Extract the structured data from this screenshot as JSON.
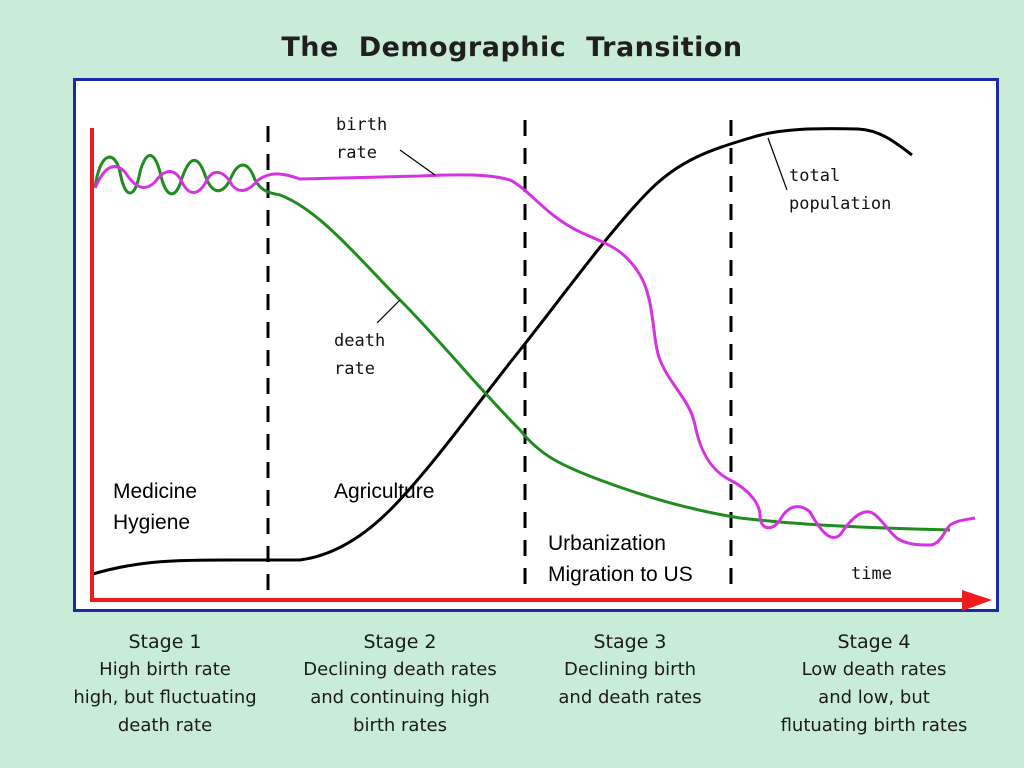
{
  "title": "The Demographic Transition",
  "curve_labels": {
    "birth_rate": [
      "birth",
      "rate"
    ],
    "death_rate": [
      "death",
      "rate"
    ],
    "total_population": [
      "total",
      "population"
    ],
    "time": "time"
  },
  "annotations": {
    "stage1": [
      "Medicine",
      "Hygiene"
    ],
    "stage2": "Agriculture",
    "stage3": [
      "Urbanization",
      "Migration to US"
    ]
  },
  "stages": [
    {
      "title": "Stage 1",
      "lines": [
        "High birth rate",
        "high, but fluctuating",
        "death rate"
      ]
    },
    {
      "title": "Stage 2",
      "lines": [
        "Declining death rates",
        "and continuing high",
        "birth rates"
      ]
    },
    {
      "title": "Stage 3",
      "lines": [
        "Declining birth",
        "and death rates"
      ]
    },
    {
      "title": "Stage 4",
      "lines": [
        "Low death rates",
        "and low, but",
        "flutuating birth rates"
      ]
    }
  ],
  "colors": {
    "birth_rate": "#d633e0",
    "death_rate": "#1e8c1e",
    "total_population": "#000000",
    "axes": "#ee1c1c",
    "frame": "#1b2aa8"
  }
}
